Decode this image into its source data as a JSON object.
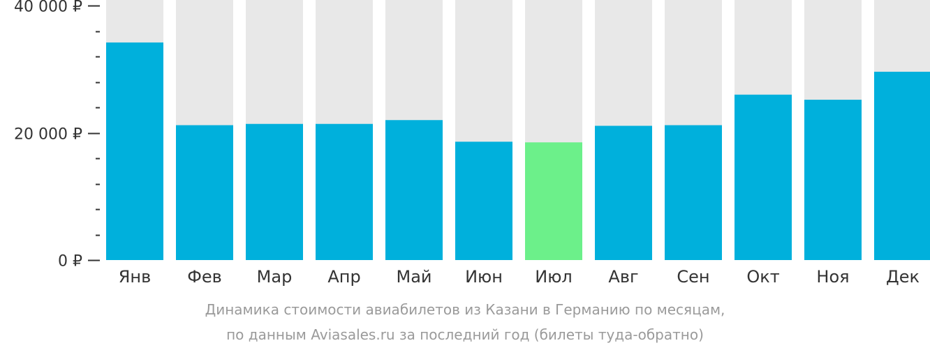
{
  "chart_data": {
    "type": "bar",
    "categories": [
      "Янв",
      "Фев",
      "Мар",
      "Апр",
      "Май",
      "Июн",
      "Июл",
      "Авг",
      "Сен",
      "Окт",
      "Ноя",
      "Дек"
    ],
    "values": [
      34200,
      21200,
      21400,
      21400,
      22000,
      18600,
      18500,
      21100,
      21200,
      26000,
      25200,
      29600
    ],
    "highlight_index": 6,
    "ylim": [
      0,
      40000
    ],
    "y_ticks": [
      {
        "value": 40000,
        "label": "40 000 ₽"
      },
      {
        "value": 20000,
        "label": "20 000 ₽"
      },
      {
        "value": 0,
        "label": "0 ₽"
      }
    ],
    "y_minor_step": 4000,
    "colors": {
      "bar": "#00b0dc",
      "highlight": "#6cf08a",
      "background_column": "#e8e8e8",
      "axis_text": "#333333",
      "tick": "#333333"
    },
    "grid": false,
    "legend": "none"
  },
  "caption": {
    "line1": "Динамика стоимости авиабилетов из Казани в Германию по месяцам,",
    "line2": "по данным Aviasales.ru за последний год (билеты туда-обратно)"
  }
}
